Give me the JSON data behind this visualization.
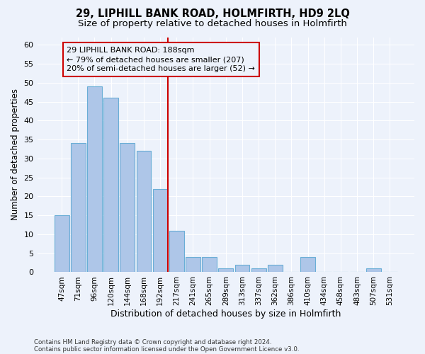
{
  "title": "29, LIPHILL BANK ROAD, HOLMFIRTH, HD9 2LQ",
  "subtitle": "Size of property relative to detached houses in Holmfirth",
  "xlabel": "Distribution of detached houses by size in Holmfirth",
  "ylabel": "Number of detached properties",
  "bar_labels": [
    "47sqm",
    "71sqm",
    "96sqm",
    "120sqm",
    "144sqm",
    "168sqm",
    "192sqm",
    "217sqm",
    "241sqm",
    "265sqm",
    "289sqm",
    "313sqm",
    "337sqm",
    "362sqm",
    "386sqm",
    "410sqm",
    "434sqm",
    "458sqm",
    "483sqm",
    "507sqm",
    "531sqm"
  ],
  "bar_values": [
    15,
    34,
    49,
    46,
    34,
    32,
    22,
    11,
    4,
    4,
    1,
    2,
    1,
    2,
    0,
    4,
    0,
    0,
    0,
    1,
    0
  ],
  "bar_color": "#aec6e8",
  "bar_edge_color": "#6aaed6",
  "ylim": [
    0,
    62
  ],
  "yticks": [
    0,
    5,
    10,
    15,
    20,
    25,
    30,
    35,
    40,
    45,
    50,
    55,
    60
  ],
  "annotation_line_index": 6,
  "annotation_text_line1": "29 LIPHILL BANK ROAD: 188sqm",
  "annotation_text_line2": "← 79% of detached houses are smaller (207)",
  "annotation_text_line3": "20% of semi-detached houses are larger (52) →",
  "annotation_box_color": "#cc0000",
  "footer1": "Contains HM Land Registry data © Crown copyright and database right 2024.",
  "footer2": "Contains public sector information licensed under the Open Government Licence v3.0.",
  "bg_color": "#edf2fb",
  "grid_color": "#ffffff",
  "title_fontsize": 10.5,
  "subtitle_fontsize": 9.5,
  "ylabel_fontsize": 8.5,
  "xlabel_fontsize": 9
}
